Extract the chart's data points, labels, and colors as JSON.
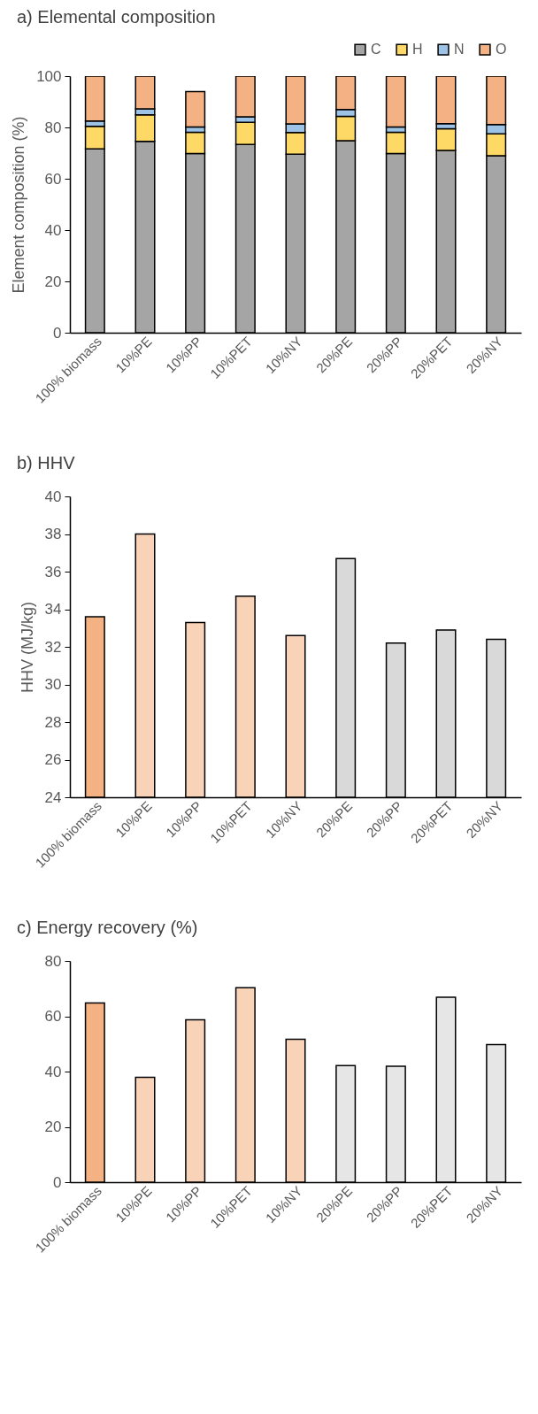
{
  "chart_data": [
    {
      "type": "bar",
      "title": "a) Elemental composition",
      "ylabel": "Element composition (%)",
      "categories": [
        "100% biomass",
        "10%PE",
        "10%PP",
        "10%PET",
        "10%NY",
        "20%PE",
        "20%PP",
        "20%PET",
        "20%NY"
      ],
      "stacked": true,
      "legend": "top right",
      "ylim": [
        0,
        100
      ],
      "yticks": [
        0,
        20,
        40,
        60,
        80,
        100
      ],
      "series": [
        {
          "name": "C",
          "color": "#a5a5a5",
          "values": [
            71.6,
            74.6,
            69.8,
            73.4,
            69.6,
            74.8,
            69.8,
            71.0,
            69.0
          ]
        },
        {
          "name": "H",
          "color": "#ffd966",
          "values": [
            8.8,
            10.3,
            8.3,
            8.6,
            8.4,
            9.5,
            8.3,
            8.5,
            8.5
          ]
        },
        {
          "name": "N",
          "color": "#9dc3e6",
          "values": [
            2.1,
            2.3,
            2.1,
            2.1,
            3.4,
            2.7,
            2.1,
            2.0,
            3.6
          ]
        },
        {
          "name": "O",
          "color": "#f4b183",
          "values": [
            17.5,
            12.8,
            13.8,
            15.9,
            18.6,
            13.0,
            19.8,
            18.5,
            18.9
          ]
        }
      ]
    },
    {
      "type": "bar",
      "title": "b) HHV",
      "ylabel": "HHV (MJ/kg)",
      "categories": [
        "100% biomass",
        "10%PE",
        "10%PP",
        "10%PET",
        "10%NY",
        "20%PE",
        "20%PP",
        "20%PET",
        "20%NY"
      ],
      "ylim": [
        24,
        40
      ],
      "yticks": [
        24,
        26,
        28,
        30,
        32,
        34,
        36,
        38,
        40
      ],
      "values": [
        33.6,
        38.0,
        33.3,
        34.7,
        32.6,
        36.7,
        32.2,
        32.9,
        32.4
      ],
      "colors": [
        "#f4b183",
        "#f9d3b8",
        "#f9d3b8",
        "#f9d3b8",
        "#f9d3b8",
        "#d9d9d9",
        "#d9d9d9",
        "#d9d9d9",
        "#d9d9d9"
      ]
    },
    {
      "type": "bar",
      "title": "c) Energy recovery (%)",
      "categories": [
        "100% biomass",
        "10%PE",
        "10%PP",
        "10%PET",
        "10%NY",
        "20%PE",
        "20%PP",
        "20%PET",
        "20%NY"
      ],
      "ylim": [
        0,
        80
      ],
      "yticks": [
        0,
        20,
        40,
        60,
        80
      ],
      "values": [
        64.8,
        37.9,
        58.7,
        70.3,
        51.7,
        42.2,
        41.9,
        66.9,
        49.8
      ],
      "colors": [
        "#f4b183",
        "#f9d3b8",
        "#f9d3b8",
        "#f9d3b8",
        "#f9d3b8",
        "#e6e6e6",
        "#e6e6e6",
        "#e6e6e6",
        "#e6e6e6"
      ]
    }
  ]
}
